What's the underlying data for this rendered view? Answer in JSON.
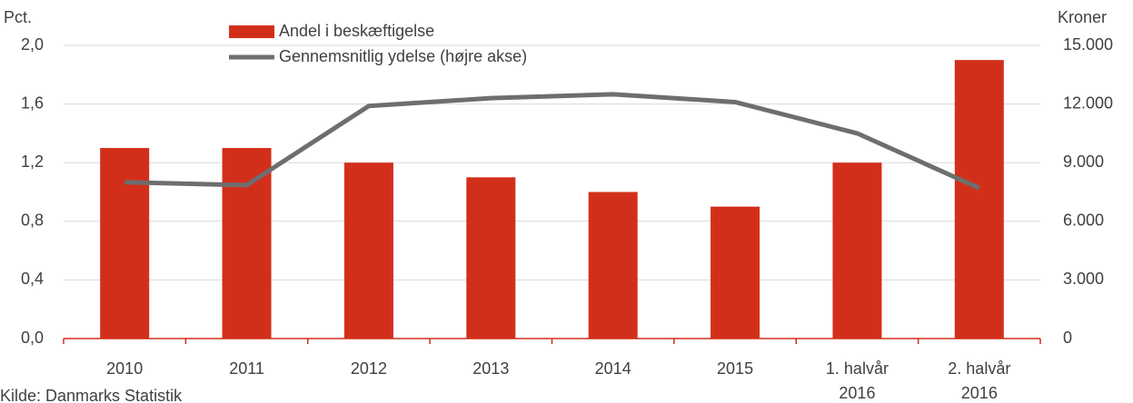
{
  "chart_data": {
    "type": "bar_line",
    "y_label": "Pct.",
    "y2_label": "Kroner",
    "source": "Kilde: Danmarks Statistik",
    "categories": [
      "2010",
      "2011",
      "2012",
      "2013",
      "2014",
      "2015",
      "1. halvår 2016",
      "2. halvår 2016"
    ],
    "series": [
      {
        "name": "Andel i beskæftigelse",
        "type": "bar",
        "color": "#d22f1b",
        "values": [
          1.3,
          1.3,
          1.2,
          1.1,
          1.0,
          0.9,
          1.2,
          1.9
        ]
      },
      {
        "name": "Gennemsnitlig ydelse (højre akse)",
        "type": "line",
        "axis": "y2",
        "color": "#6e6e6e",
        "values": [
          8000,
          7850,
          11900,
          12300,
          12500,
          12100,
          10500,
          7700
        ]
      }
    ],
    "ylim": [
      0,
      2
    ],
    "yticks": [
      {
        "value": 0,
        "label": "0,0"
      },
      {
        "value": 0.4,
        "label": "0,4"
      },
      {
        "value": 0.8,
        "label": "0,8"
      },
      {
        "value": 1.2,
        "label": "1,2"
      },
      {
        "value": 1.6,
        "label": "1,6"
      },
      {
        "value": 2,
        "label": "2,0"
      }
    ],
    "y2lim": [
      0,
      15000
    ],
    "y2ticks": [
      0,
      {
        "value": 3000,
        "label": "3.000"
      },
      {
        "value": 6000,
        "label": "6.000"
      },
      {
        "value": 9000,
        "label": "9.000"
      },
      {
        "value": 12000,
        "label": "12.000"
      },
      {
        "value": 15000,
        "label": "15.000"
      }
    ],
    "grid": true
  }
}
